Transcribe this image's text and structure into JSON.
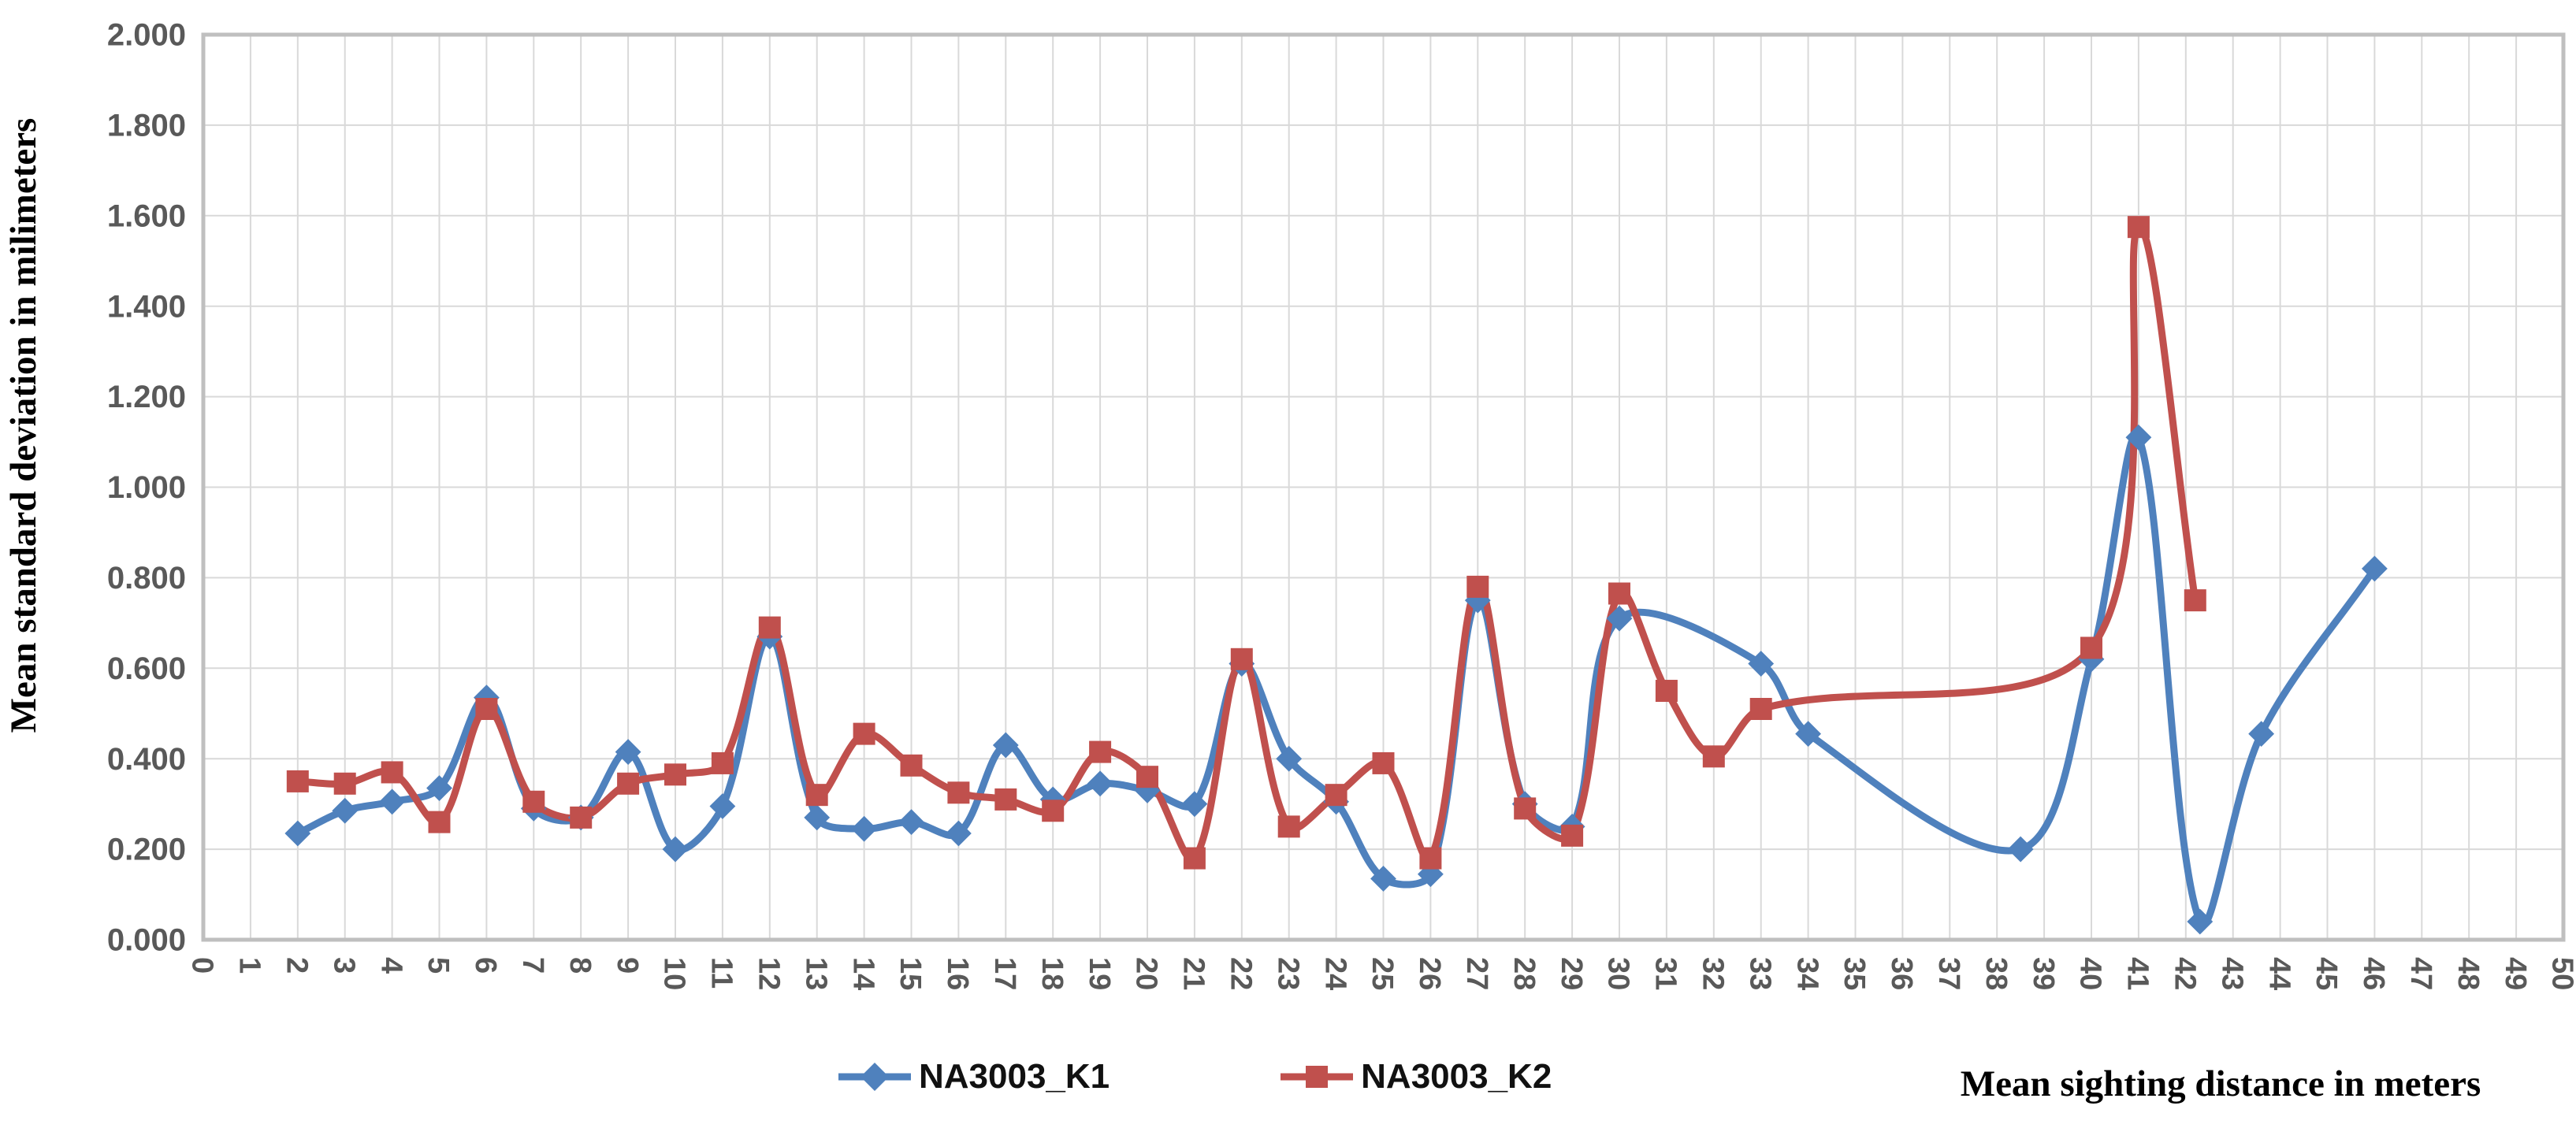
{
  "chart_data": {
    "type": "line",
    "title": "",
    "xlabel": "Mean sighting distance in meters",
    "ylabel": "Mean standard deviation in milimeters",
    "xlim": [
      0,
      50
    ],
    "ylim": [
      0,
      2
    ],
    "grid": "both",
    "legend_position": "bottom",
    "x_tick_labels": [
      "0",
      "1",
      "2",
      "3",
      "4",
      "5",
      "6",
      "7",
      "8",
      "9",
      "10",
      "11",
      "12",
      "13",
      "14",
      "15",
      "16",
      "17",
      "18",
      "19",
      "20",
      "21",
      "22",
      "23",
      "24",
      "25",
      "26",
      "27",
      "28",
      "29",
      "30",
      "31",
      "32",
      "33",
      "34",
      "35",
      "36",
      "37",
      "38",
      "39",
      "40",
      "41",
      "42",
      "43",
      "44",
      "45",
      "46",
      "47",
      "48",
      "49",
      "50"
    ],
    "y_tick_values": [
      0,
      0.2,
      0.4,
      0.6,
      0.8,
      1.0,
      1.2,
      1.4,
      1.6,
      1.8,
      2.0
    ],
    "y_tick_labels": [
      "0.000",
      "0.200",
      "0.400",
      "0.600",
      "0.800",
      "1.000",
      "1.200",
      "1.400",
      "1.600",
      "1.800",
      "2.000"
    ],
    "series": [
      {
        "name": "NA3003_K1",
        "color": "#4F81BD",
        "marker": "diamond",
        "points": [
          [
            2,
            0.235
          ],
          [
            3,
            0.285
          ],
          [
            4,
            0.305
          ],
          [
            5,
            0.335
          ],
          [
            6,
            0.535
          ],
          [
            7,
            0.29
          ],
          [
            8,
            0.27
          ],
          [
            9,
            0.415
          ],
          [
            10,
            0.2
          ],
          [
            11,
            0.295
          ],
          [
            12,
            0.67
          ],
          [
            13,
            0.27
          ],
          [
            14,
            0.245
          ],
          [
            15,
            0.26
          ],
          [
            16,
            0.235
          ],
          [
            17,
            0.43
          ],
          [
            18,
            0.31
          ],
          [
            19,
            0.345
          ],
          [
            20,
            0.33
          ],
          [
            21,
            0.3
          ],
          [
            22,
            0.61
          ],
          [
            23,
            0.4
          ],
          [
            24,
            0.305
          ],
          [
            25,
            0.135
          ],
          [
            26,
            0.145
          ],
          [
            27,
            0.75
          ],
          [
            28,
            0.3
          ],
          [
            29,
            0.25
          ],
          [
            30,
            0.71
          ],
          [
            33,
            0.61
          ],
          [
            34,
            0.455
          ],
          [
            38.5,
            0.2
          ],
          [
            40,
            0.62
          ],
          [
            41,
            1.11
          ],
          [
            42.3,
            0.04
          ],
          [
            43.6,
            0.455
          ],
          [
            46,
            0.82
          ]
        ]
      },
      {
        "name": "NA3003_K2",
        "color": "#C0504D",
        "marker": "square",
        "points": [
          [
            2,
            0.35
          ],
          [
            3,
            0.345
          ],
          [
            4,
            0.37
          ],
          [
            5,
            0.26
          ],
          [
            6,
            0.51
          ],
          [
            7,
            0.305
          ],
          [
            8,
            0.27
          ],
          [
            9,
            0.345
          ],
          [
            10,
            0.365
          ],
          [
            11,
            0.39
          ],
          [
            12,
            0.69
          ],
          [
            13,
            0.32
          ],
          [
            14,
            0.455
          ],
          [
            15,
            0.385
          ],
          [
            16,
            0.325
          ],
          [
            17,
            0.31
          ],
          [
            18,
            0.285
          ],
          [
            19,
            0.415
          ],
          [
            20,
            0.36
          ],
          [
            21,
            0.18
          ],
          [
            22,
            0.62
          ],
          [
            23,
            0.25
          ],
          [
            24,
            0.32
          ],
          [
            25,
            0.39
          ],
          [
            26,
            0.18
          ],
          [
            27,
            0.78
          ],
          [
            28,
            0.29
          ],
          [
            29,
            0.23
          ],
          [
            30,
            0.765
          ],
          [
            31,
            0.55
          ],
          [
            32,
            0.405
          ],
          [
            33,
            0.51
          ],
          [
            40,
            0.645
          ],
          [
            41,
            1.575
          ],
          [
            42.2,
            0.75
          ]
        ]
      }
    ],
    "colors": {
      "gridline": "#D9D9D9",
      "plot_border": "#BFBFBF",
      "tick_label": "#595959",
      "series1": "#4F81BD",
      "series2": "#C0504D"
    }
  }
}
